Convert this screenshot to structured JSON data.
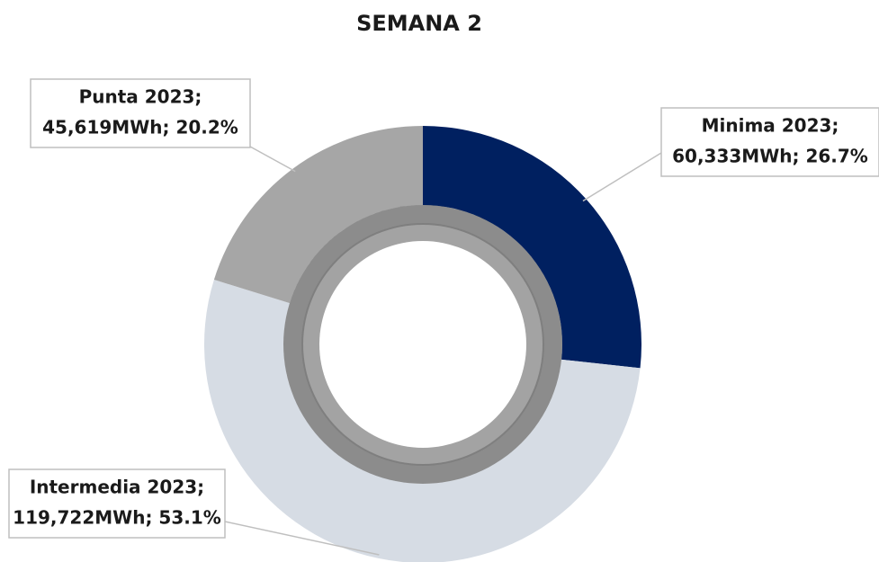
{
  "chart_data": {
    "type": "donut",
    "title": "SEMANA 2",
    "categories": [
      "Minima 2023;",
      "Intermedia 2023;",
      "Punta 2023;"
    ],
    "values": [
      60333,
      119722,
      45619
    ],
    "value_labels": [
      "60,333MWh; 26.7%",
      "119,722MWh; 53.1%",
      "45,619MWh; 20.2%"
    ],
    "colors": [
      "#002060",
      "#d6dce4",
      "#a6a6a6"
    ]
  }
}
